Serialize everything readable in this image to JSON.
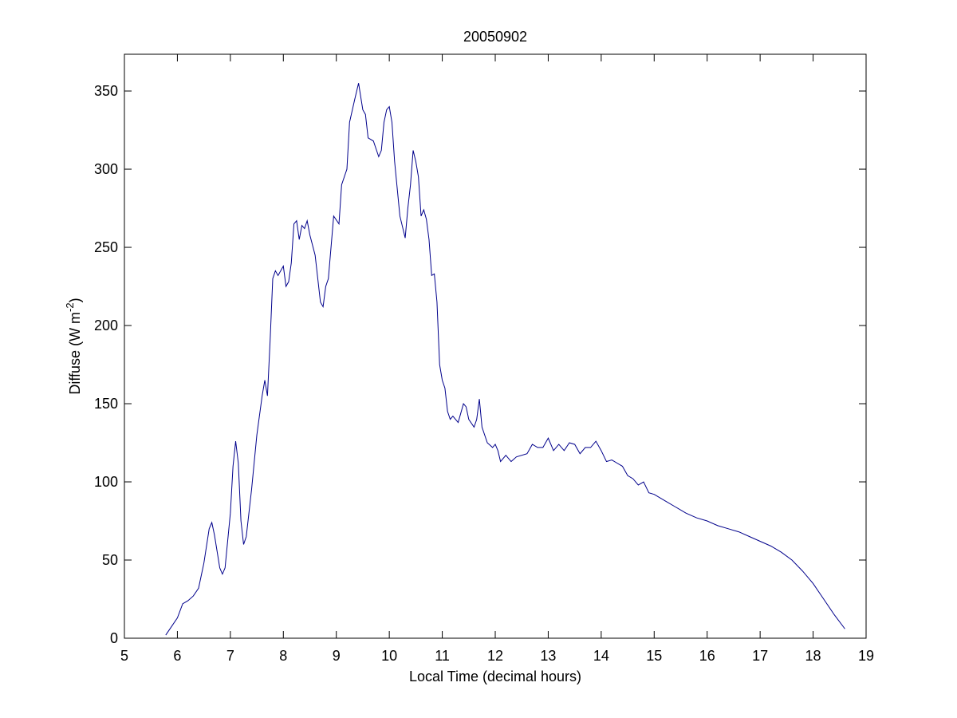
{
  "chart_data": {
    "type": "line",
    "title": "20050902",
    "xlabel": "Local Time (decimal hours)",
    "ylabel": [
      "Diffuse (W m",
      "-2",
      ")"
    ],
    "xlim": [
      5,
      19
    ],
    "xticks": [
      5,
      6,
      7,
      8,
      9,
      10,
      11,
      12,
      13,
      14,
      15,
      16,
      17,
      18,
      19
    ],
    "ylim": [
      0,
      373.5
    ],
    "yticks": [
      0,
      50,
      100,
      150,
      200,
      250,
      300,
      350
    ],
    "series": [
      {
        "color": "#00008b",
        "x": [
          5.78,
          5.9,
          6.0,
          6.1,
          6.2,
          6.3,
          6.4,
          6.5,
          6.6,
          6.65,
          6.7,
          6.8,
          6.85,
          6.9,
          7.0,
          7.05,
          7.1,
          7.15,
          7.2,
          7.25,
          7.3,
          7.4,
          7.5,
          7.6,
          7.65,
          7.7,
          7.75,
          7.8,
          7.85,
          7.9,
          8.0,
          8.05,
          8.1,
          8.15,
          8.2,
          8.25,
          8.3,
          8.35,
          8.4,
          8.45,
          8.5,
          8.6,
          8.7,
          8.75,
          8.8,
          8.85,
          8.95,
          9.05,
          9.1,
          9.2,
          9.25,
          9.35,
          9.42,
          9.5,
          9.55,
          9.6,
          9.7,
          9.8,
          9.85,
          9.9,
          9.95,
          10.0,
          10.05,
          10.1,
          10.2,
          10.3,
          10.35,
          10.4,
          10.45,
          10.5,
          10.55,
          10.6,
          10.65,
          10.7,
          10.75,
          10.8,
          10.85,
          10.9,
          10.95,
          11.0,
          11.05,
          11.1,
          11.15,
          11.2,
          11.3,
          11.4,
          11.45,
          11.5,
          11.6,
          11.65,
          11.7,
          11.75,
          11.85,
          11.95,
          12.0,
          12.05,
          12.1,
          12.2,
          12.3,
          12.4,
          12.6,
          12.7,
          12.8,
          12.9,
          13.0,
          13.1,
          13.2,
          13.3,
          13.4,
          13.5,
          13.6,
          13.7,
          13.8,
          13.9,
          14.0,
          14.1,
          14.2,
          14.3,
          14.4,
          14.5,
          14.6,
          14.7,
          14.8,
          14.9,
          15.0,
          15.2,
          15.4,
          15.6,
          15.8,
          16.0,
          16.2,
          16.4,
          16.6,
          16.8,
          17.0,
          17.2,
          17.4,
          17.6,
          17.8,
          18.0,
          18.2,
          18.4,
          18.6
        ],
        "values": [
          2,
          8,
          13,
          22,
          24,
          27,
          32,
          48,
          70,
          74,
          66,
          45,
          41,
          45,
          80,
          110,
          126,
          112,
          75,
          60,
          65,
          95,
          130,
          155,
          165,
          155,
          190,
          230,
          235,
          232,
          238,
          225,
          228,
          240,
          265,
          267,
          255,
          264,
          262,
          267,
          258,
          245,
          215,
          212,
          225,
          230,
          270,
          265,
          290,
          300,
          330,
          345,
          355,
          338,
          335,
          320,
          318,
          308,
          312,
          330,
          338,
          340,
          330,
          305,
          270,
          256,
          275,
          290,
          312,
          305,
          295,
          270,
          274,
          268,
          255,
          232,
          233,
          215,
          175,
          165,
          160,
          145,
          140,
          142,
          138,
          150,
          148,
          140,
          135,
          140,
          153,
          135,
          125,
          122,
          124,
          120,
          113,
          117,
          113,
          116,
          118,
          124,
          122,
          122,
          128,
          120,
          124,
          120,
          125,
          124,
          118,
          122,
          122,
          126,
          120,
          113,
          114,
          112,
          110,
          104,
          102,
          98,
          100,
          93,
          92,
          88,
          84,
          80,
          77,
          75,
          72,
          70,
          68,
          65,
          62,
          59,
          55,
          50,
          43,
          35,
          25,
          15,
          6
        ]
      }
    ]
  }
}
